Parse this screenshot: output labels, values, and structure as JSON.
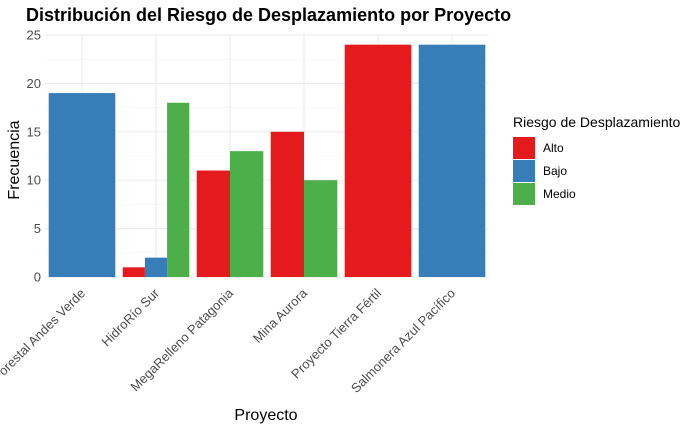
{
  "chart_data": {
    "type": "bar",
    "title": "Distribución del Riesgo de Desplazamiento por Proyecto",
    "xlabel": "Proyecto",
    "ylabel": "Frecuencia",
    "ylim": [
      0,
      25
    ],
    "yticks": [
      0,
      5,
      10,
      15,
      20,
      25
    ],
    "grid": true,
    "legend_position": "right",
    "legend_title": "Riesgo de Desplazamiento",
    "categories": [
      "Forestal Andes Verde",
      "HidroRío Sur",
      "MegaRelleno Patagonia",
      "Mina Aurora",
      "Proyecto Tierra Fértil",
      "Salmonera Azul Pacífico"
    ],
    "series": [
      {
        "name": "Alto",
        "color": "#E41A1C",
        "values": [
          null,
          1,
          11,
          15,
          24,
          null
        ]
      },
      {
        "name": "Bajo",
        "color": "#377EB8",
        "values": [
          19,
          2,
          null,
          null,
          null,
          24
        ]
      },
      {
        "name": "Medio",
        "color": "#4DAF4A",
        "values": [
          null,
          18,
          13,
          10,
          null,
          null
        ]
      }
    ]
  }
}
